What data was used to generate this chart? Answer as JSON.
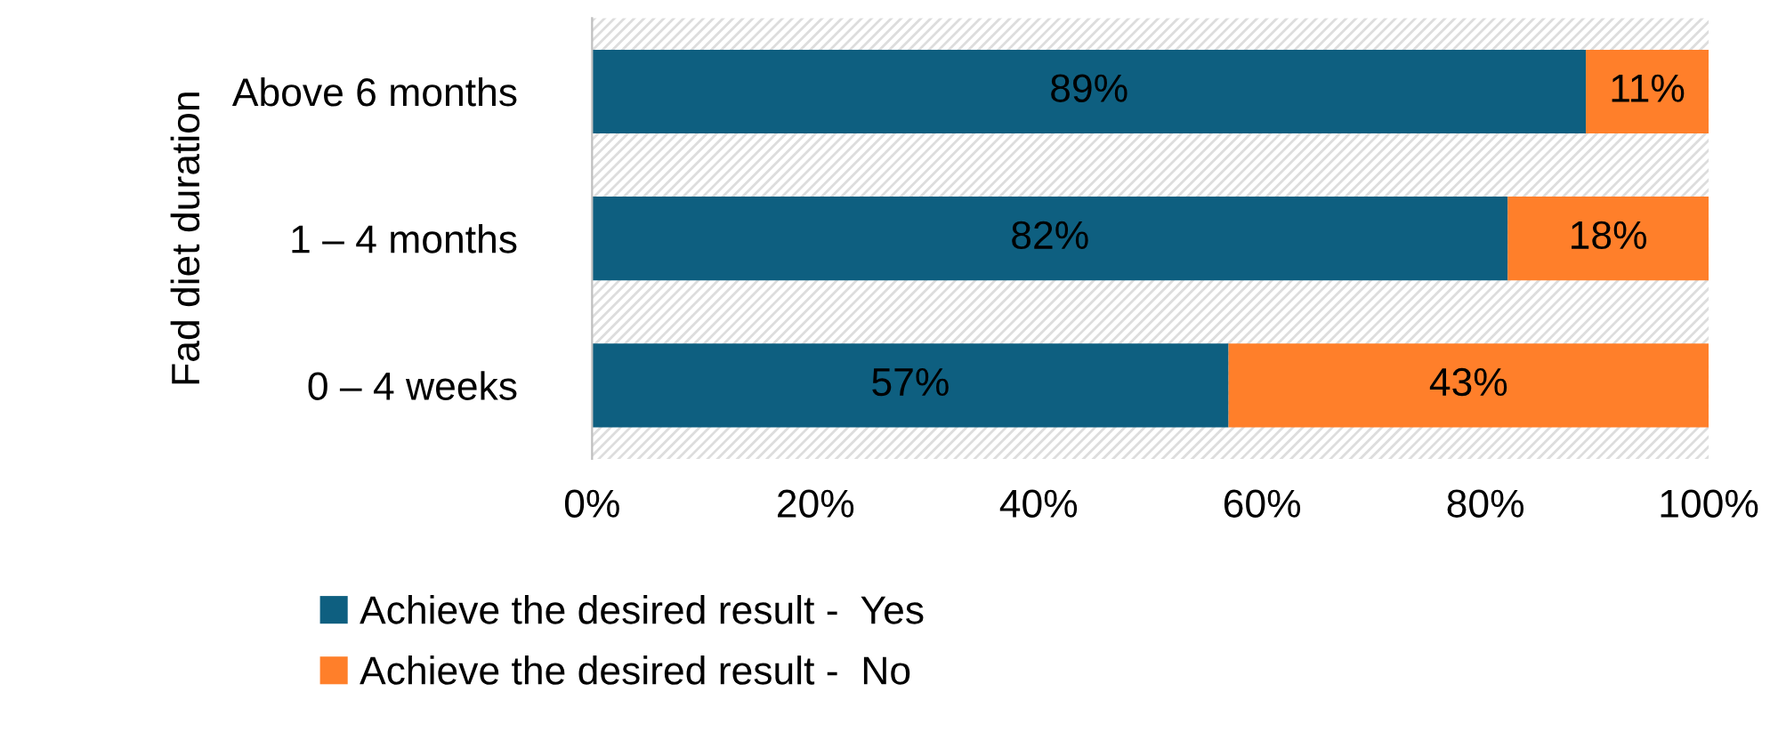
{
  "chart_data": {
    "type": "bar",
    "orientation": "horizontal",
    "stacked": true,
    "ylabel": "Fad diet duration",
    "categories": [
      "Above 6 months",
      "1 – 4 months",
      "0 – 4 weeks"
    ],
    "series": [
      {
        "name": "Achieve the desired result -  Yes",
        "color": "#0e5f80",
        "values": [
          89,
          82,
          57
        ],
        "value_labels": [
          "89%",
          "82%",
          "57%"
        ]
      },
      {
        "name": "Achieve the desired result -  No",
        "color": "#ff7f2a",
        "values": [
          11,
          18,
          43
        ],
        "value_labels": [
          "11%",
          "18%",
          "43%"
        ]
      }
    ],
    "xlim": [
      0,
      100
    ],
    "xticks": [
      {
        "value": 0,
        "label": "0%"
      },
      {
        "value": 20,
        "label": "20%"
      },
      {
        "value": 40,
        "label": "40%"
      },
      {
        "value": 60,
        "label": "60%"
      },
      {
        "value": 80,
        "label": "80%"
      },
      {
        "value": 100,
        "label": "100%"
      }
    ],
    "grid": false,
    "legend": "bottom"
  }
}
